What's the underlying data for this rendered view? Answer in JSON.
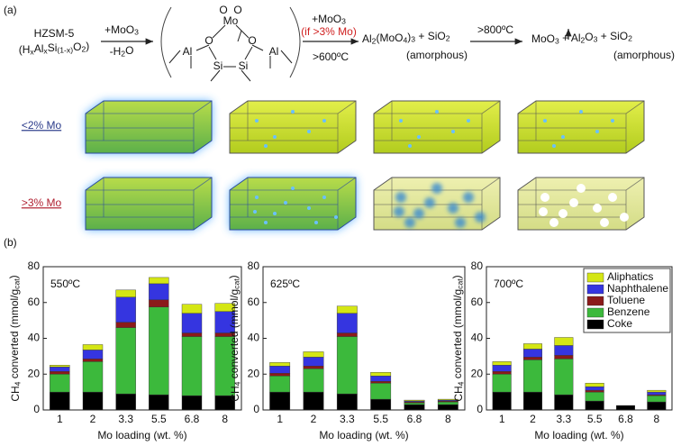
{
  "panel_a": {
    "label": "(a)",
    "start": "HZSM-5",
    "start_formula": [
      "(H",
      "x",
      "Al",
      "x",
      "Si",
      "(1-x)",
      "O",
      "2",
      ")"
    ],
    "step1_reagent": [
      "+MoO",
      "3"
    ],
    "step1_byproduct": [
      "-H",
      "2",
      "O"
    ],
    "molecule": {
      "metal": "Mo",
      "oxygens": [
        "O",
        "O",
        "O",
        "O"
      ],
      "aluminums": [
        "Al",
        "Al"
      ],
      "silicons": [
        "Si",
        "Si"
      ]
    },
    "step2_reagent": [
      "+MoO",
      "3"
    ],
    "step2_condition": "(if >3% Mo)",
    "step2_temperature": ">600ºC",
    "product1": [
      "Al",
      "2",
      "(MoO",
      "4",
      ")",
      "3",
      " + SiO",
      "2"
    ],
    "product1_note": "(amorphous)",
    "step3_temperature": ">800ºC",
    "product2": [
      "MoO",
      "3",
      " + Al",
      "2",
      "O",
      "3",
      " + SiO",
      "2"
    ],
    "product2_note": "(amorphous)",
    "row_labels": [
      "<2% Mo",
      ">3% Mo"
    ]
  },
  "panel_b_label": "(b)",
  "chart_data": [
    {
      "type": "bar",
      "stacked": true,
      "title": "550ºC",
      "categories": [
        "1",
        "2",
        "3.3",
        "5.5",
        "6.8",
        "8"
      ],
      "x_label": "Mo loading (wt. %)",
      "y_label": [
        "CH",
        "4",
        " converted (mmol/g",
        "cat",
        ")"
      ],
      "ylim": [
        0,
        80
      ],
      "yticks": [
        0,
        20,
        40,
        60,
        80
      ],
      "series": [
        {
          "color": "#000000",
          "values": [
            10,
            10,
            9,
            8.5,
            8,
            8
          ]
        },
        {
          "color": "#3cb93c",
          "values": [
            10,
            17,
            37,
            49,
            33,
            33
          ]
        },
        {
          "color": "#8b1a1a",
          "values": [
            1.5,
            1.5,
            3,
            4,
            2,
            2
          ]
        },
        {
          "color": "#3535e0",
          "values": [
            2.5,
            5,
            14,
            9,
            11,
            12
          ]
        },
        {
          "color": "#d4e614",
          "values": [
            1,
            3,
            4,
            3.5,
            5,
            4.5
          ]
        }
      ]
    },
    {
      "type": "bar",
      "stacked": true,
      "title": "625ºC",
      "categories": [
        "1",
        "2",
        "3.3",
        "5.5",
        "6.8",
        "8"
      ],
      "x_label": "Mo loading (wt. %)",
      "y_label": [
        "CH",
        "4",
        " converted (mmol/g",
        "cat",
        ")"
      ],
      "ylim": [
        0,
        80
      ],
      "yticks": [
        0,
        20,
        40,
        60,
        80
      ],
      "series": [
        {
          "color": "#000000",
          "values": [
            10,
            10,
            9,
            6,
            3,
            3
          ]
        },
        {
          "color": "#3cb93c",
          "values": [
            9,
            13,
            32,
            9,
            1,
            1.5
          ]
        },
        {
          "color": "#8b1a1a",
          "values": [
            1.5,
            1.5,
            2,
            1,
            0.5,
            0.5
          ]
        },
        {
          "color": "#3535e0",
          "values": [
            4,
            5,
            11,
            3,
            0.5,
            0.5
          ]
        },
        {
          "color": "#d4e614",
          "values": [
            2,
            3,
            4,
            2,
            0.5,
            0.5
          ]
        }
      ]
    },
    {
      "type": "bar",
      "stacked": true,
      "title": "700ºC",
      "categories": [
        "1",
        "2",
        "3.3",
        "5.5",
        "6.8",
        "8"
      ],
      "x_label": "Mo loading (wt. %)",
      "y_label": [
        "CH",
        "4",
        " converted (mmol/g",
        "cat",
        ")"
      ],
      "ylim": [
        0,
        80
      ],
      "yticks": [
        0,
        20,
        40,
        60,
        80
      ],
      "legend": "upper right",
      "series": [
        {
          "name": "Coke",
          "color": "#000000",
          "values": [
            10,
            10,
            8.5,
            5,
            2.5,
            4.5
          ]
        },
        {
          "name": "Benzene",
          "color": "#3cb93c",
          "values": [
            10,
            18,
            20,
            5,
            0,
            3.5
          ]
        },
        {
          "name": "Toluene",
          "color": "#8b1a1a",
          "values": [
            1.5,
            1.5,
            2,
            1,
            0,
            0.5
          ]
        },
        {
          "name": "Naphthalene",
          "color": "#3535e0",
          "values": [
            3.5,
            4.5,
            5.5,
            2,
            0,
            1.5
          ]
        },
        {
          "name": "Aliphatics",
          "color": "#d4e614",
          "values": [
            2,
            3,
            4.5,
            2,
            0,
            1
          ]
        }
      ]
    }
  ]
}
